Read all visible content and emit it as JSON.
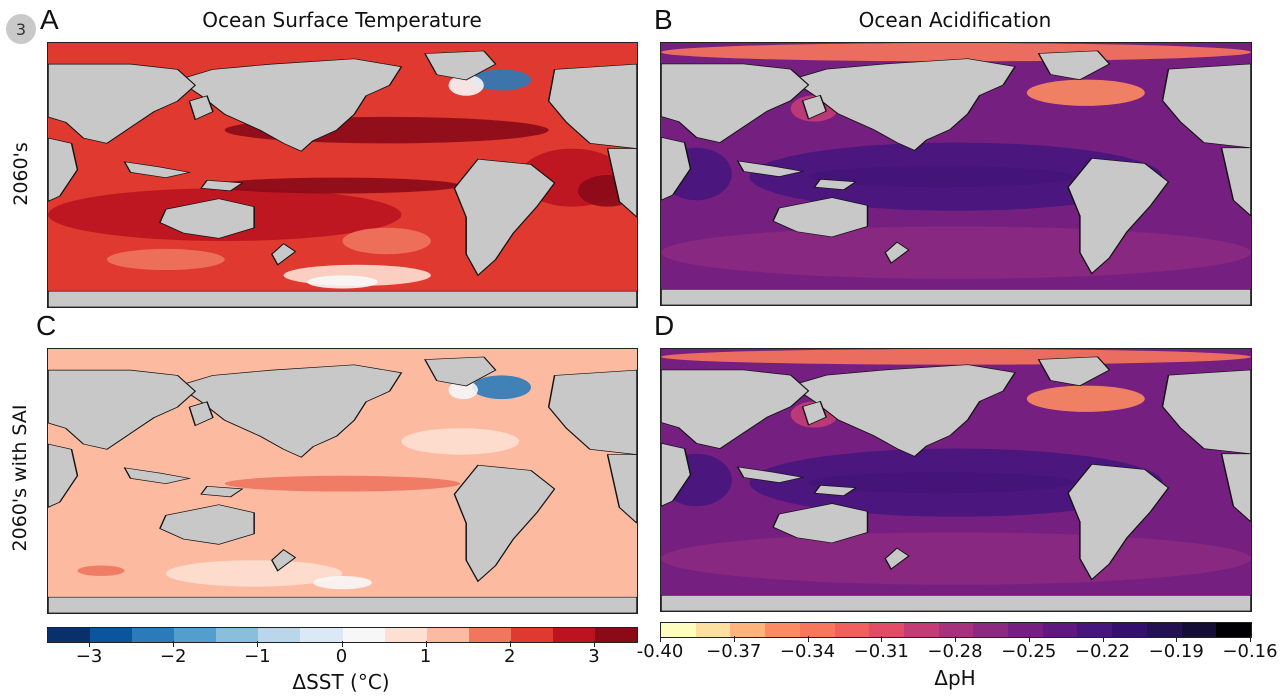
{
  "figure": {
    "badge": "3",
    "column_titles": [
      "Ocean Surface Temperature",
      "Ocean Acidification"
    ],
    "row_labels": [
      "2060's",
      "2060's with SAI"
    ],
    "panels": [
      {
        "letter": "A",
        "variable": "ΔSST (°C)",
        "row": "2060's"
      },
      {
        "letter": "B",
        "variable": "ΔpH",
        "row": "2060's"
      },
      {
        "letter": "C",
        "variable": "ΔSST (°C)",
        "row": "2060's with SAI"
      },
      {
        "letter": "D",
        "variable": "ΔpH",
        "row": "2060's with SAI"
      }
    ]
  },
  "colorbars": {
    "sst": {
      "label": "ΔSST (°C)",
      "ticks": [
        "−3",
        "−2",
        "−1",
        "0",
        "1",
        "2",
        "3"
      ],
      "tick_values": [
        -3,
        -2,
        -1,
        0,
        1,
        2,
        3
      ],
      "range": [
        -3.5,
        3.5
      ],
      "colors": [
        "#08306b",
        "#0b559f",
        "#2b7bba",
        "#539ecd",
        "#89bedc",
        "#bad6eb",
        "#dbe9f6",
        "#f7f7f7",
        "#fde0d2",
        "#fcbba1",
        "#f0765e",
        "#e0392f",
        "#bb1420",
        "#8a0a18"
      ]
    },
    "ph": {
      "label": "ΔpH",
      "ticks": [
        "-0.40",
        "−0.37",
        "−0.34",
        "−0.31",
        "−0.28",
        "−0.25",
        "−0.22",
        "−0.19",
        "−0.16"
      ],
      "tick_values": [
        -0.4,
        -0.37,
        -0.34,
        -0.31,
        -0.28,
        -0.25,
        -0.22,
        -0.19,
        -0.16
      ],
      "range": [
        -0.4,
        -0.16
      ],
      "colors": [
        "#fcfdbf",
        "#fde0a1",
        "#feb47b",
        "#fe8b61",
        "#f8765c",
        "#f1605d",
        "#e24c67",
        "#c43c75",
        "#a7317d",
        "#8c2981",
        "#751f81",
        "#5f187f",
        "#47157c",
        "#340f6b",
        "#231151",
        "#140e36",
        "#000004"
      ]
    }
  },
  "map_colors": {
    "land": "#c8c8c8",
    "A": {
      "ocean": "#e0392f",
      "warm": "#bb1420",
      "hot": "#8a0a18",
      "mild": "#f0765e",
      "cool": "#fde0d2",
      "cold": "#2b7bba",
      "neutral": "#f7f7f7"
    },
    "C": {
      "ocean": "#fcbba1",
      "warm": "#f0765e",
      "hot": "#e0392f",
      "mild": "#fde0d2",
      "cool": "#fde0d2",
      "cold": "#2b7bba",
      "neutral": "#f7f7f7"
    },
    "B": {
      "ocean": "#751f81",
      "deep": "#47157c",
      "deeper": "#231151",
      "arctic": "#f8765c",
      "arctic2": "#fe8b61",
      "coast": "#c43c75",
      "south": "#8c2981"
    },
    "D": {
      "ocean": "#751f81",
      "deep": "#47157c",
      "deeper": "#231151",
      "arctic": "#f8765c",
      "arctic2": "#fe8b61",
      "coast": "#c43c75",
      "south": "#8c2981"
    }
  }
}
